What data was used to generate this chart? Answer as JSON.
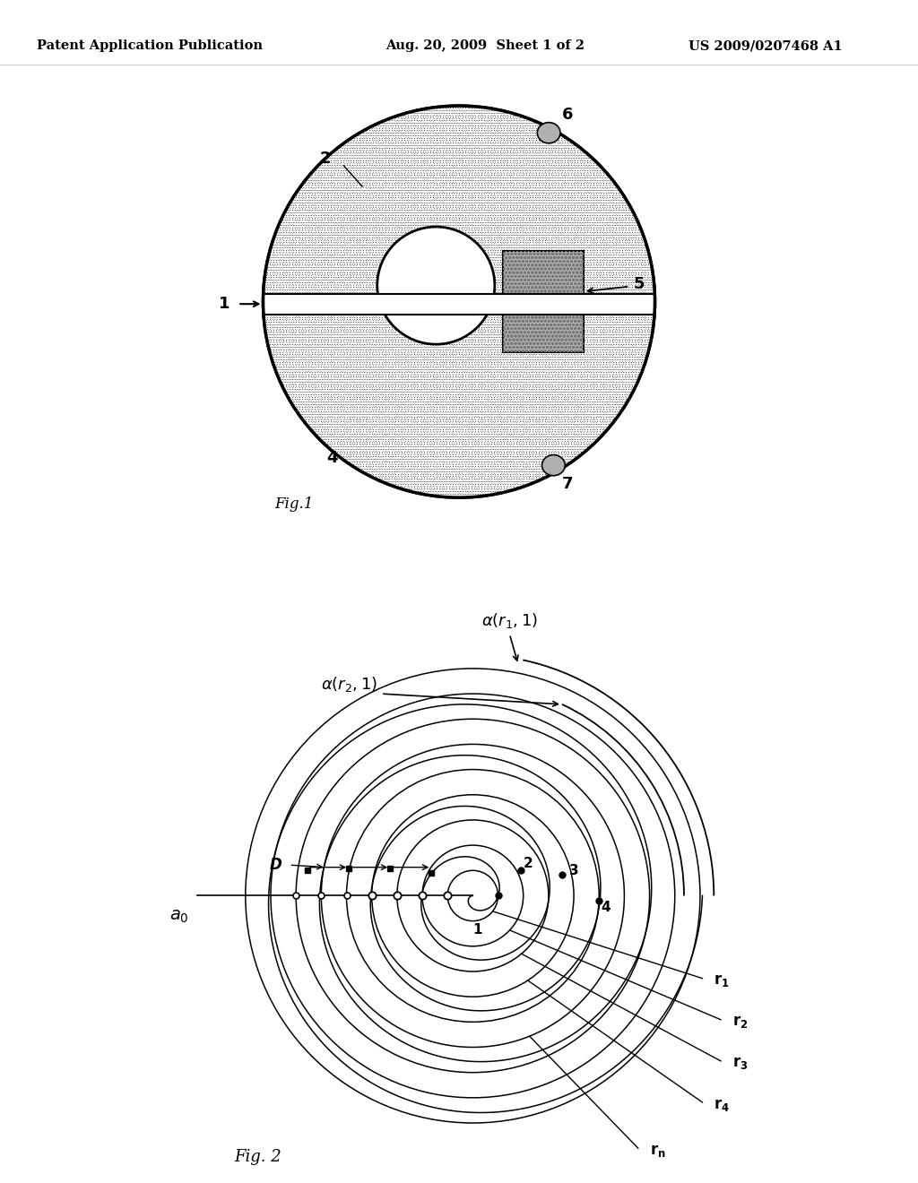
{
  "header_left": "Patent Application Publication",
  "header_mid": "Aug. 20, 2009  Sheet 1 of 2",
  "header_right": "US 2009/0207468 A1",
  "fig1_label": "Fig.1",
  "fig2_label": "Fig. 2",
  "bg_color": "#ffffff",
  "line_color": "#000000"
}
